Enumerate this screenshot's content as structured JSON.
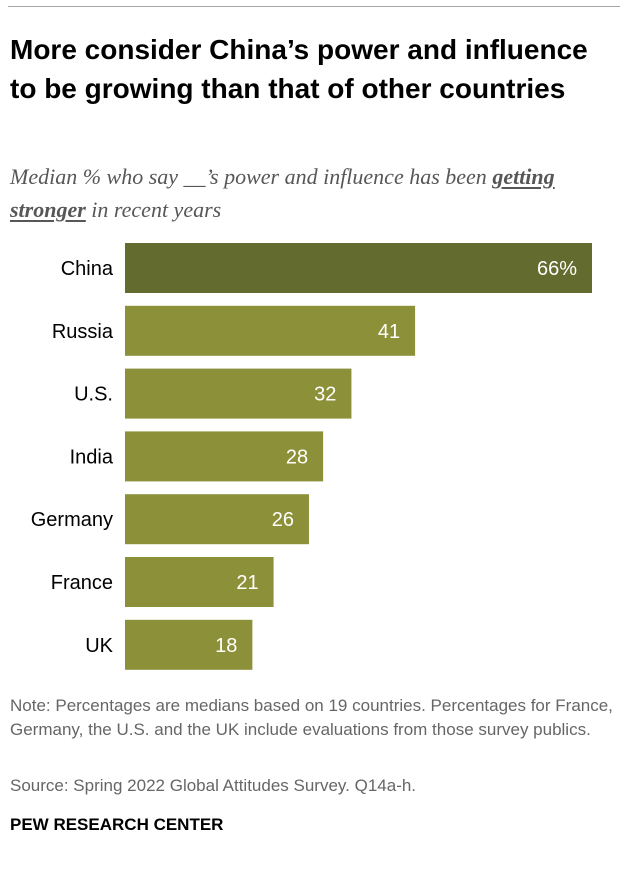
{
  "title": "More consider China’s power and influence to be growing than that of other countries",
  "subtitle": {
    "before": "Median % who say __’s power and influence has been ",
    "emphasis": "getting stronger",
    "after": " in recent years"
  },
  "note": "Note: Percentages are medians based on 19 countries. Percentages for France, Germany, the U.S. and the UK include evaluations from those survey publics.",
  "source": "Source: Spring 2022 Global Attitudes Survey. Q14a-h.",
  "credit": "PEW RESEARCH CENTER",
  "colors": {
    "highlight_bar": "#636b2f",
    "bar": "#8c9139"
  },
  "chart_data": {
    "type": "bar",
    "orientation": "horizontal",
    "categories": [
      "China",
      "Russia",
      "U.S.",
      "India",
      "Germany",
      "France",
      "UK"
    ],
    "values": [
      66,
      41,
      32,
      28,
      26,
      21,
      18
    ],
    "value_labels": [
      "66%",
      "41",
      "32",
      "28",
      "26",
      "21",
      "18"
    ],
    "highlight_index": 0,
    "xlim": [
      0,
      66
    ],
    "grid": false,
    "legend": "none"
  }
}
